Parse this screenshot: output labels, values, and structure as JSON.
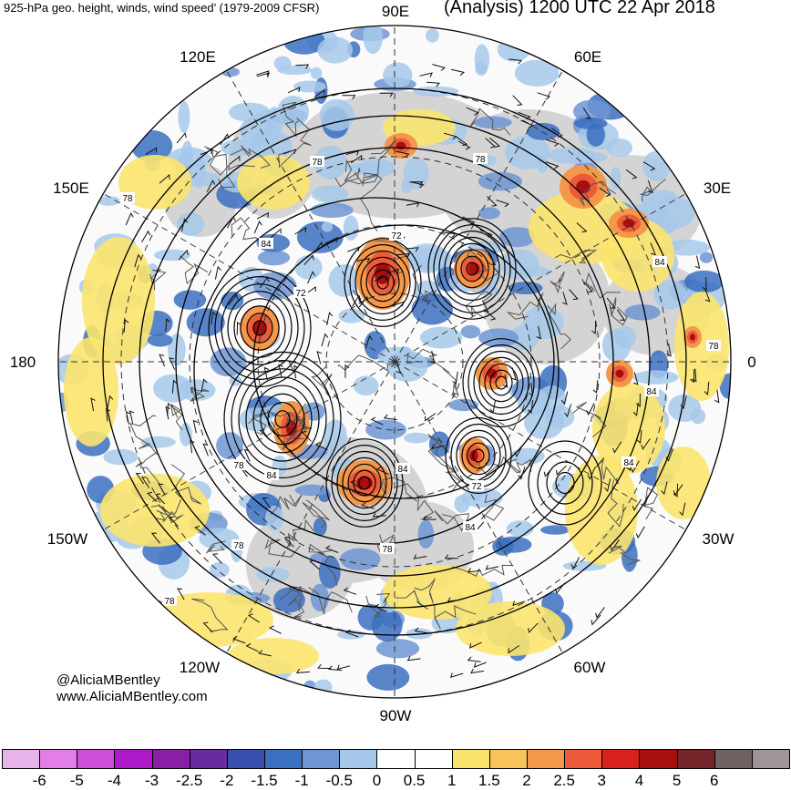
{
  "header": {
    "left_title": "925-hPa geo. height, winds, wind speed’ (1979-2009 CFSR)",
    "right_title": "(Analysis) 1200 UTC 22 Apr 2018"
  },
  "map": {
    "projection": "north-polar-stereographic",
    "center_longitude_down": "90W",
    "longitude_labels": [
      "90E",
      "60E",
      "30E",
      "0",
      "30W",
      "60W",
      "90W",
      "120W",
      "150W",
      "180",
      "150E",
      "120E"
    ],
    "contour_labels": [
      "78",
      "84",
      "72",
      "78",
      "84",
      "78",
      "78",
      "72",
      "78",
      "84",
      "84",
      "78",
      "84",
      "78",
      "72",
      "84",
      "78",
      "84"
    ],
    "anomaly_centers": [
      {
        "region": "central Asia",
        "sign": "positive",
        "max": "2.5"
      },
      {
        "region": "Europe west of Urals",
        "sign": "positive",
        "max": "3"
      },
      {
        "region": "northern Atlantic",
        "sign": "positive",
        "max": "3"
      },
      {
        "region": "Alaska/Yukon",
        "sign": "positive",
        "max": "3"
      },
      {
        "region": "Gulf of Alaska",
        "sign": "positive",
        "max": "3"
      },
      {
        "region": "northwest Canada",
        "sign": "positive",
        "max": "3"
      }
    ]
  },
  "credits": {
    "handle": "@AliciaMBentley",
    "website": "www.AliciaMBentley.com"
  },
  "colorbar": {
    "colors": [
      "#e8b3e8",
      "#e37ee6",
      "#cc4ed9",
      "#ad19c9",
      "#8a1fa6",
      "#6a2ba0",
      "#3b4fae",
      "#3b6fbf",
      "#6f95d3",
      "#a6c8ea",
      "#ffffff",
      "#ffffff",
      "#fbe46d",
      "#f8c35a",
      "#f3984b",
      "#ec5c3a",
      "#d8211c",
      "#a50f0f",
      "#75242a",
      "#6e6262",
      "#a09596"
    ],
    "ticks": [
      "-6",
      "-5",
      "-4",
      "-3",
      "-2.5",
      "-2",
      "-1.5",
      "-1",
      "-0.5",
      "0",
      "0.5",
      "1",
      "1.5",
      "2",
      "2.5",
      "3",
      "4",
      "5",
      "6"
    ]
  }
}
